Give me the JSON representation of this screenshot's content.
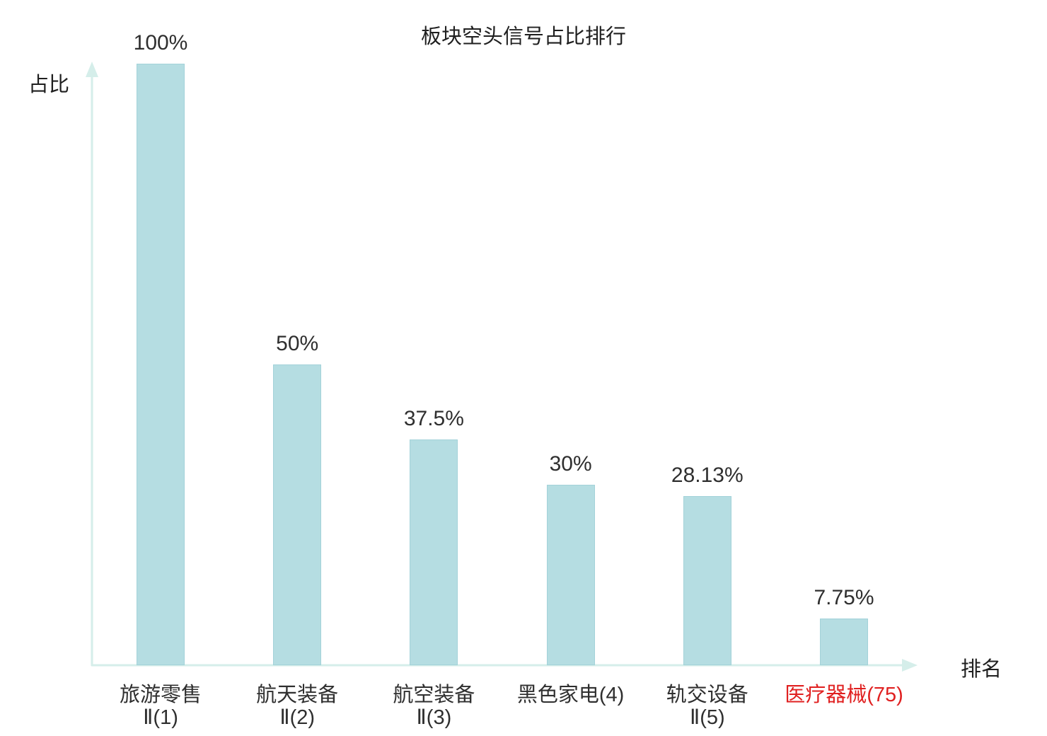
{
  "chart_data": {
    "type": "bar",
    "title": "板块空头信号占比排行",
    "ylabel": "占比",
    "xlabel": "排名",
    "ylim": [
      0,
      100
    ],
    "grid": false,
    "legend": "none",
    "categories": [
      "旅游零售Ⅱ(1)",
      "航天装备Ⅱ(2)",
      "航空装备Ⅱ(3)",
      "黑色家电(4)",
      "轨交设备Ⅱ(5)",
      "医疗器械(75)"
    ],
    "category_lines": [
      [
        "旅游零售",
        "Ⅱ(1)"
      ],
      [
        "航天装备",
        "Ⅱ(2)"
      ],
      [
        "航空装备",
        "Ⅱ(3)"
      ],
      [
        "黑色家电(4)"
      ],
      [
        "轨交设备",
        "Ⅱ(5)"
      ],
      [
        "医疗器械(75)"
      ]
    ],
    "values": [
      100,
      50,
      37.5,
      30,
      28.13,
      7.75
    ],
    "value_labels": [
      "100%",
      "50%",
      "37.5%",
      "30%",
      "28.13%",
      "7.75%"
    ],
    "highlight_index": 5,
    "colors": {
      "bar_fill": "#b5dde2",
      "bar_border": "#a3d2d9",
      "axis": "#d5eeea",
      "text": "#2f2f2f",
      "highlight": "#e02020"
    }
  }
}
